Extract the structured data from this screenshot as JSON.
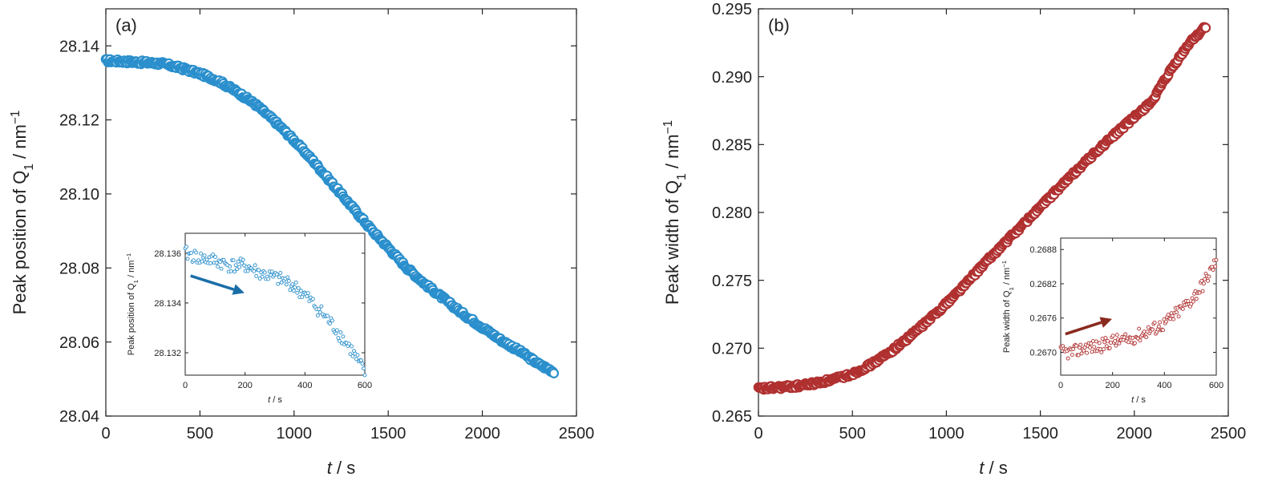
{
  "chart_data": [
    {
      "id": "a",
      "panel_label": "(a)",
      "type": "scatter",
      "xlabel": "t / s",
      "ylabel": "Peak position of Q1 / nm−1",
      "xlim": [
        0,
        2500
      ],
      "ylim": [
        28.04,
        28.15
      ],
      "x_ticks": [
        "0",
        "500",
        "1000",
        "1500",
        "2000",
        "2500"
      ],
      "y_ticks": [
        "28.04",
        "28.06",
        "28.08",
        "28.10",
        "28.12",
        "28.14"
      ],
      "color": "#2a8fcc",
      "marker": "open-circle",
      "series": [
        {
          "x": [
            0,
            100,
            200,
            300,
            400,
            500,
            600,
            700,
            800,
            900,
            1000,
            1100,
            1200,
            1300,
            1400,
            1500,
            1600,
            1700,
            1800,
            1900,
            2000,
            2100,
            2200,
            2300,
            2380
          ],
          "y": [
            28.136,
            28.1358,
            28.1355,
            28.1352,
            28.134,
            28.1325,
            28.1305,
            28.1275,
            28.124,
            28.1195,
            28.1145,
            28.109,
            28.103,
            28.097,
            28.091,
            28.0855,
            28.08,
            28.0755,
            28.0715,
            28.0675,
            28.064,
            28.0605,
            28.0575,
            28.054,
            28.052
          ]
        }
      ],
      "inset": {
        "xlabel": "t / s",
        "ylabel": "Peak position of Q1 / nm−1",
        "xlim": [
          0,
          600
        ],
        "ylim": [
          28.1311,
          28.1368
        ],
        "x_ticks": [
          "0",
          "200",
          "400",
          "600"
        ],
        "y_ticks": [
          "28.132",
          "28.134",
          "28.136"
        ],
        "trend": "decreasing",
        "series": [
          {
            "x": [
              0,
              50,
              100,
              150,
              200,
              250,
              300,
              350,
              400,
              450,
              500,
              550,
              600
            ],
            "y": [
              28.136,
              28.1358,
              28.1357,
              28.1355,
              28.1355,
              28.1352,
              28.135,
              28.1348,
              28.1343,
              28.1337,
              28.133,
              28.1322,
              28.1312
            ]
          }
        ]
      }
    },
    {
      "id": "b",
      "panel_label": "(b)",
      "type": "scatter",
      "xlabel": "t / s",
      "ylabel": "Peak width of Q1 / nm−1",
      "xlim": [
        0,
        2500
      ],
      "ylim": [
        0.265,
        0.295
      ],
      "x_ticks": [
        "0",
        "500",
        "1000",
        "1500",
        "2000",
        "2500"
      ],
      "y_ticks": [
        "0.265",
        "0.270",
        "0.275",
        "0.280",
        "0.285",
        "0.290",
        "0.295"
      ],
      "color": "#b03030",
      "marker": "open-circle",
      "series": [
        {
          "x": [
            0,
            100,
            200,
            300,
            400,
            500,
            600,
            700,
            800,
            900,
            1000,
            1100,
            1200,
            1300,
            1400,
            1500,
            1600,
            1700,
            1800,
            1900,
            2000,
            2100,
            2200,
            2300,
            2380
          ],
          "y": [
            0.267,
            0.2671,
            0.2672,
            0.2674,
            0.2677,
            0.2681,
            0.2688,
            0.2697,
            0.2708,
            0.272,
            0.2733,
            0.2747,
            0.2762,
            0.2776,
            0.279,
            0.2804,
            0.2818,
            0.2832,
            0.2845,
            0.2858,
            0.287,
            0.2883,
            0.2906,
            0.2926,
            0.2937
          ]
        }
      ],
      "inset": {
        "xlabel": "t / s",
        "ylabel": "Peak width of Q1 / nm−1",
        "xlim": [
          0,
          600
        ],
        "ylim": [
          0.2666,
          0.269
        ],
        "x_ticks": [
          "0",
          "200",
          "400",
          "600"
        ],
        "y_ticks": [
          "0.2670",
          "0.2676",
          "0.2682",
          "0.2688"
        ],
        "trend": "increasing",
        "series": [
          {
            "x": [
              0,
              50,
              100,
              150,
              200,
              250,
              300,
              350,
              400,
              450,
              500,
              550,
              600
            ],
            "y": [
              0.267,
              0.267,
              0.2671,
              0.2671,
              0.2672,
              0.2672,
              0.2673,
              0.2674,
              0.2675,
              0.2677,
              0.2679,
              0.2682,
              0.2686
            ]
          }
        ]
      }
    }
  ]
}
